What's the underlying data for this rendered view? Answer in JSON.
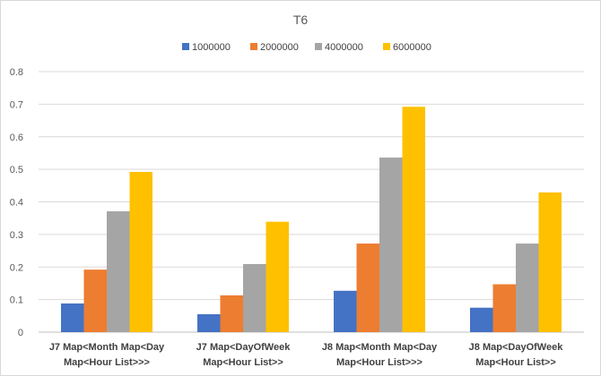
{
  "chart_data": {
    "type": "bar",
    "title": "T6",
    "xlabel": "",
    "ylabel": "",
    "ylim": [
      0,
      0.8
    ],
    "yticks": [
      "0",
      "0.1",
      "0.2",
      "0.3",
      "0.4",
      "0.5",
      "0.6",
      "0.7",
      "0.8"
    ],
    "ytick_values": [
      0,
      0.1,
      0.2,
      0.3,
      0.4,
      0.5,
      0.6,
      0.7,
      0.8
    ],
    "grid": true,
    "legend_position": "top",
    "categories": [
      [
        "J7 Map<Month Map<Day",
        "Map<Hour List>>>"
      ],
      [
        "J7 Map<DayOfWeek",
        "Map<Hour List>>"
      ],
      [
        "J8 Map<Month Map<Day",
        "Map<Hour List>>>"
      ],
      [
        "J8 Map<DayOfWeek",
        "Map<Hour List>>"
      ]
    ],
    "series": [
      {
        "name": "1000000",
        "color": "#4472c4",
        "values": [
          0.088,
          0.055,
          0.127,
          0.075
        ]
      },
      {
        "name": "2000000",
        "color": "#ed7d31",
        "values": [
          0.192,
          0.113,
          0.272,
          0.147
        ]
      },
      {
        "name": "4000000",
        "color": "#a5a5a5",
        "values": [
          0.371,
          0.209,
          0.536,
          0.272
        ]
      },
      {
        "name": "6000000",
        "color": "#ffc000",
        "values": [
          0.492,
          0.339,
          0.692,
          0.429
        ]
      }
    ]
  }
}
